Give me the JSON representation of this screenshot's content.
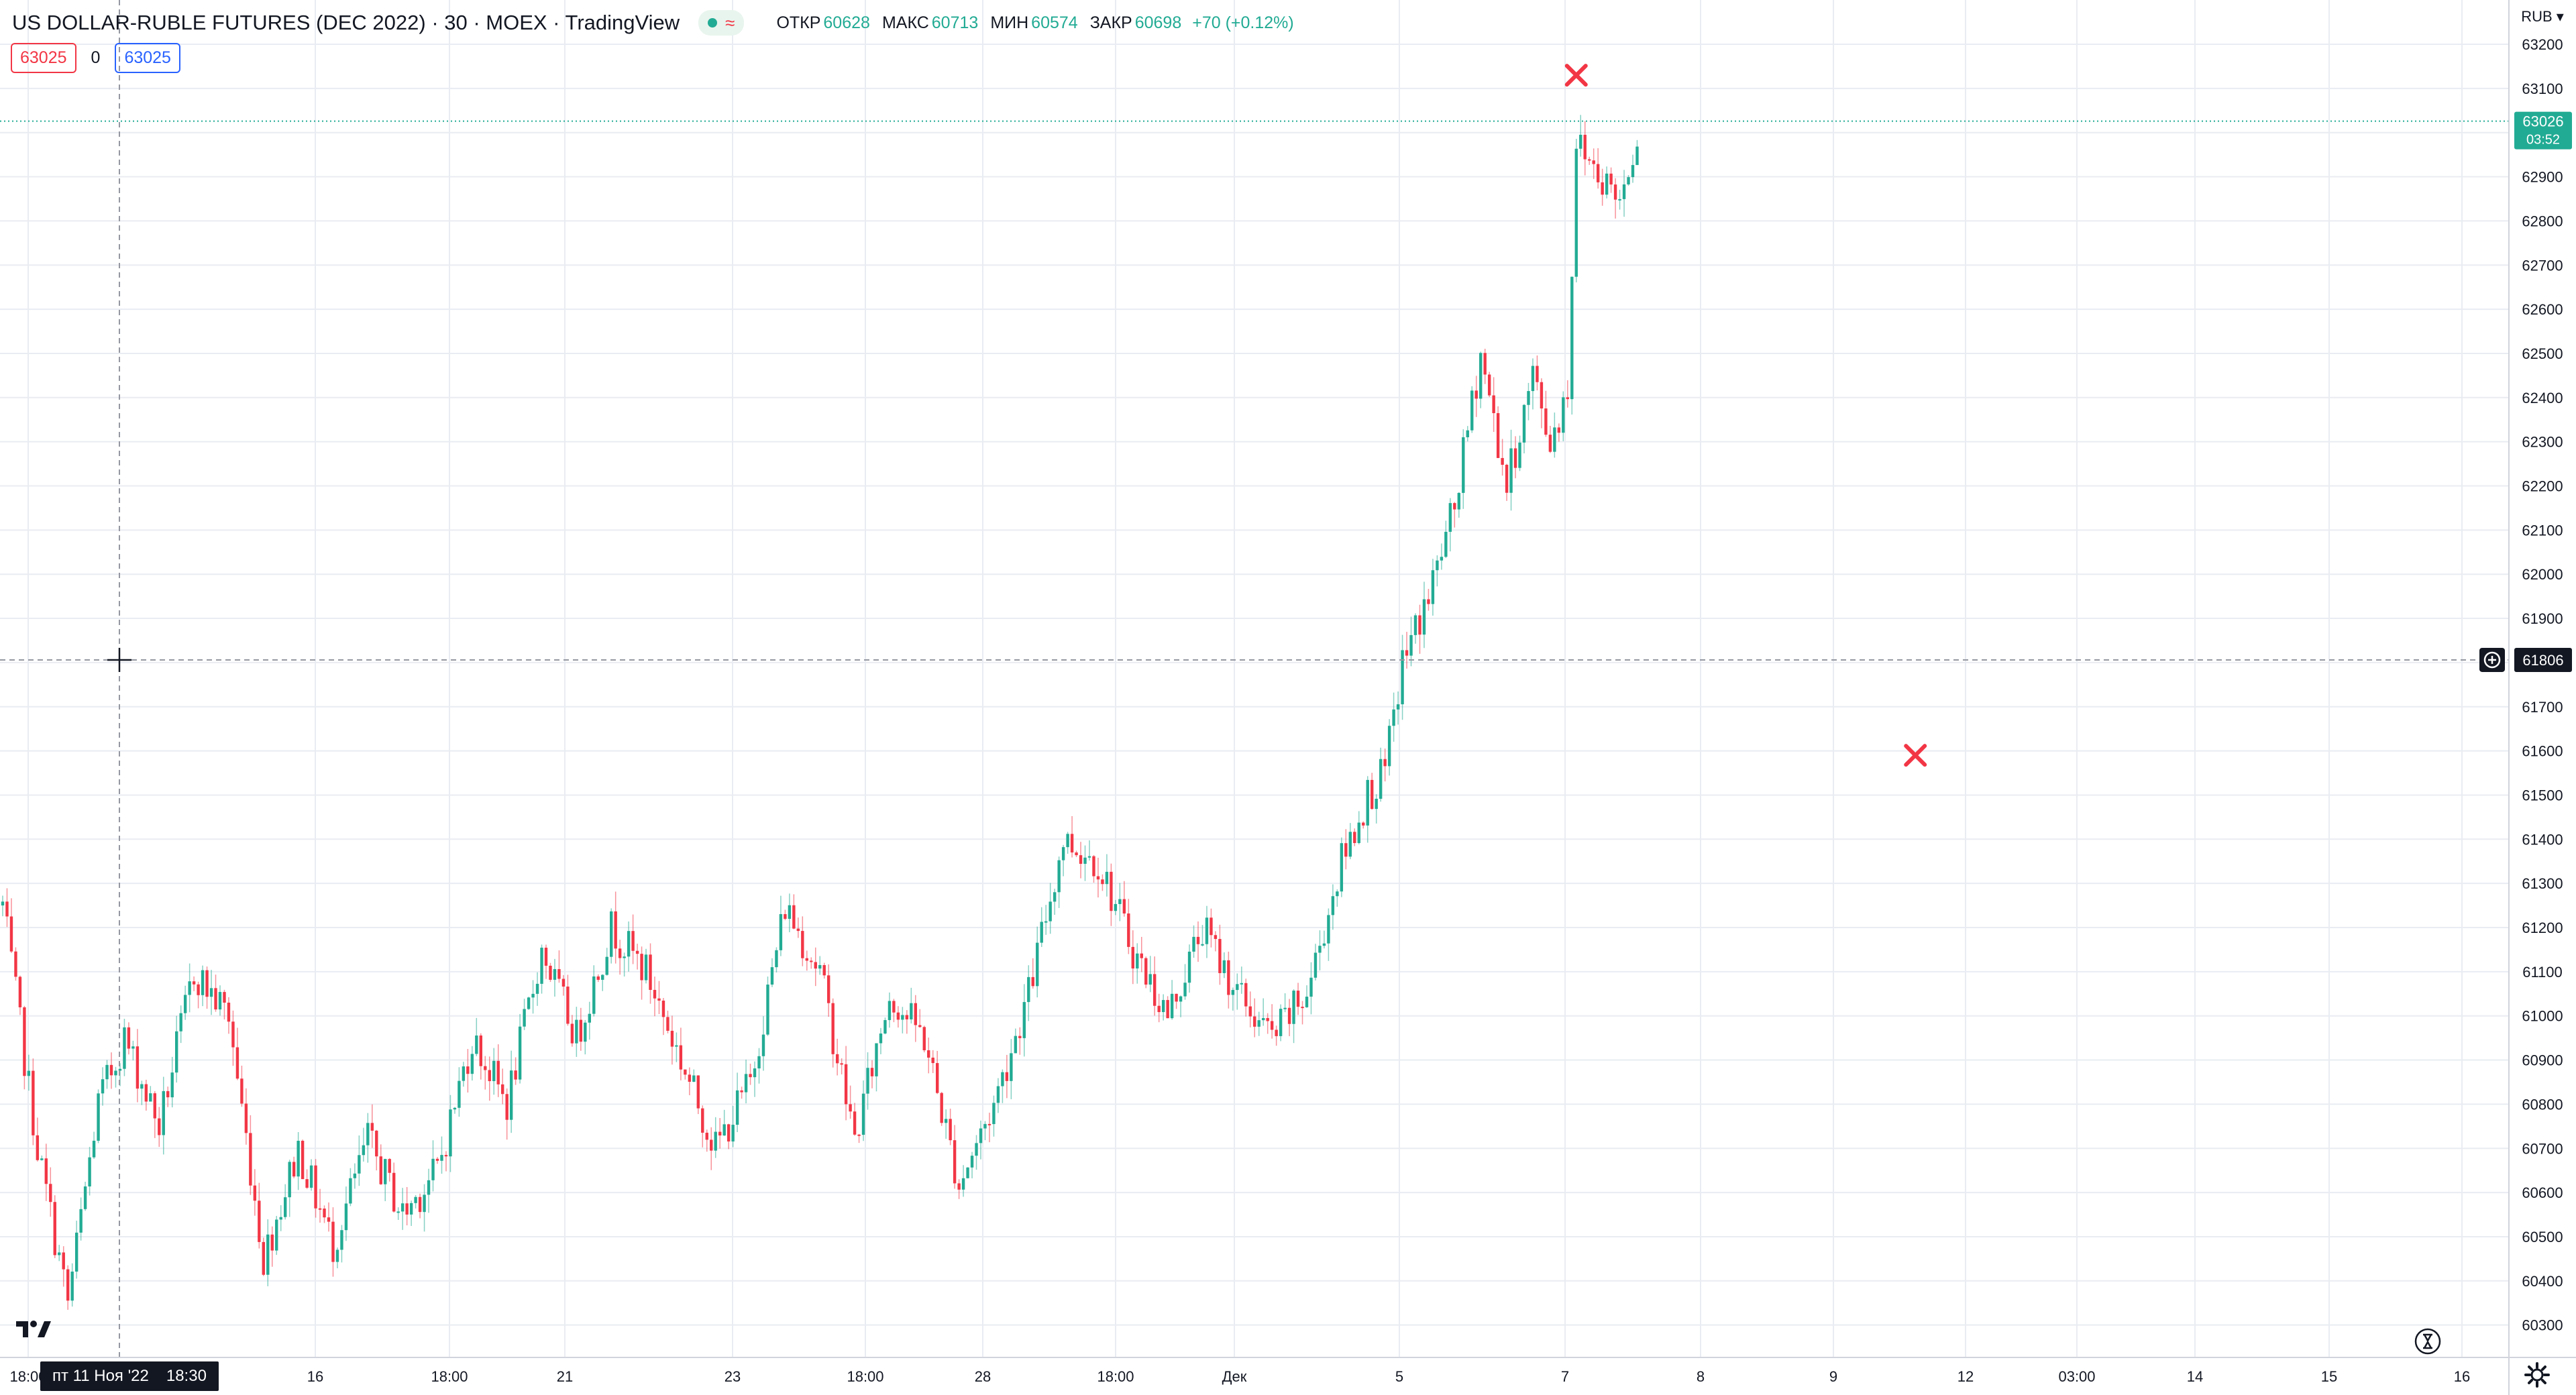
{
  "header": {
    "title": "US DOLLAR-RUBLE FUTURES (DEC 2022) · 30 · MOEX · TradingView",
    "ohlc": [
      {
        "label": "ОТКР",
        "value": "60628"
      },
      {
        "label": "МАКС",
        "value": "60713"
      },
      {
        "label": "МИН",
        "value": "60574"
      },
      {
        "label": "ЗАКР",
        "value": "60698"
      }
    ],
    "change": "+70 (+0.12%)",
    "sell_price": "63025",
    "spread": "0",
    "buy_price": "63025"
  },
  "axis": {
    "currency": "RUB",
    "crosshair_price": "61806",
    "last_price": "63026",
    "countdown": "03:52",
    "crosshair_date": "пт 11 Ноя '22",
    "crosshair_time": "18:30"
  },
  "colors": {
    "up": "#22ab94",
    "down": "#f23645",
    "grid": "#e9ecf2",
    "crosshair": "#9598a1",
    "last_price_line": "#22ab94",
    "marker": "#f23645"
  },
  "icons": {
    "logo": "tradingview-logo-icon",
    "replay": "timer-icon",
    "settings": "gear-icon",
    "add_alert": "plus-circle-icon",
    "cross": "crosshair-icon"
  },
  "chart_data": {
    "type": "candlestick",
    "title": "US DOLLAR-RUBLE FUTURES (DEC 2022) · 30 · MOEX",
    "ylabel": "RUB",
    "ylim": [
      60260,
      63240
    ],
    "y_ticks": [
      60300,
      60400,
      60500,
      60600,
      60700,
      60800,
      60900,
      61000,
      61100,
      61200,
      61300,
      61400,
      61500,
      61600,
      61700,
      61800,
      61900,
      62000,
      62100,
      62200,
      62300,
      62400,
      62500,
      62600,
      62700,
      62800,
      62900,
      63000,
      63100,
      63200
    ],
    "x_tick_labels": [
      "18:00",
      "16",
      "18:00",
      "21",
      "23",
      "18:00",
      "28",
      "18:00",
      "Дек",
      "5",
      "7",
      "8",
      "9",
      "12",
      "03:00",
      "14",
      "15",
      "16"
    ],
    "path_points": [
      {
        "bar": 0,
        "price": 61250
      },
      {
        "bar": 8,
        "price": 60700
      },
      {
        "bar": 15,
        "price": 60350
      },
      {
        "bar": 22,
        "price": 60800
      },
      {
        "bar": 28,
        "price": 60950
      },
      {
        "bar": 36,
        "price": 60750
      },
      {
        "bar": 44,
        "price": 61100
      },
      {
        "bar": 52,
        "price": 61000
      },
      {
        "bar": 60,
        "price": 60450
      },
      {
        "bar": 68,
        "price": 60700
      },
      {
        "bar": 76,
        "price": 60480
      },
      {
        "bar": 84,
        "price": 60720
      },
      {
        "bar": 92,
        "price": 60550
      },
      {
        "bar": 100,
        "price": 60650
      },
      {
        "bar": 108,
        "price": 60950
      },
      {
        "bar": 116,
        "price": 60800
      },
      {
        "bar": 124,
        "price": 61150
      },
      {
        "bar": 132,
        "price": 60950
      },
      {
        "bar": 140,
        "price": 61200
      },
      {
        "bar": 148,
        "price": 61100
      },
      {
        "bar": 156,
        "price": 60900
      },
      {
        "bar": 164,
        "price": 60700
      },
      {
        "bar": 172,
        "price": 60850
      },
      {
        "bar": 180,
        "price": 61250
      },
      {
        "bar": 188,
        "price": 61100
      },
      {
        "bar": 196,
        "price": 60720
      },
      {
        "bar": 204,
        "price": 61050
      },
      {
        "bar": 212,
        "price": 60950
      },
      {
        "bar": 220,
        "price": 60620
      },
      {
        "bar": 228,
        "price": 60800
      },
      {
        "bar": 236,
        "price": 61050
      },
      {
        "bar": 244,
        "price": 61400
      },
      {
        "bar": 252,
        "price": 61350
      },
      {
        "bar": 260,
        "price": 61150
      },
      {
        "bar": 268,
        "price": 61000
      },
      {
        "bar": 276,
        "price": 61200
      },
      {
        "bar": 284,
        "price": 61050
      },
      {
        "bar": 292,
        "price": 60950
      },
      {
        "bar": 300,
        "price": 61050
      },
      {
        "bar": 308,
        "price": 61350
      },
      {
        "bar": 314,
        "price": 61500
      },
      {
        "bar": 318,
        "price": 61550
      },
      {
        "bar": 322,
        "price": 61800
      },
      {
        "bar": 328,
        "price": 61950
      },
      {
        "bar": 334,
        "price": 62150
      },
      {
        "bar": 340,
        "price": 62500
      },
      {
        "bar": 346,
        "price": 62200
      },
      {
        "bar": 352,
        "price": 62450
      },
      {
        "bar": 356,
        "price": 62300
      },
      {
        "bar": 360,
        "price": 62420
      },
      {
        "bar": 362,
        "price": 62980
      },
      {
        "bar": 368,
        "price": 62900
      },
      {
        "bar": 372,
        "price": 62850
      },
      {
        "bar": 376,
        "price": 63000
      }
    ],
    "markers": [
      {
        "label": "x",
        "bar": 362,
        "price": 63130
      },
      {
        "label": "x",
        "bar": 440,
        "price": 61590
      }
    ],
    "horizontal_lines": [
      {
        "name": "crosshair",
        "price": 61806
      },
      {
        "name": "last-price",
        "price": 63026
      }
    ],
    "grid": true
  }
}
